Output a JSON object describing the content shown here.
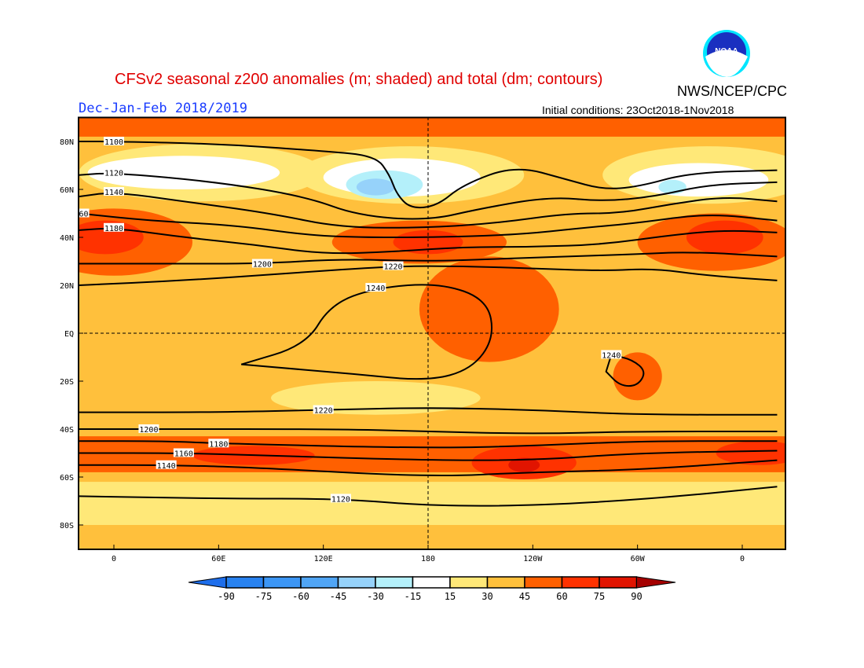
{
  "header": {
    "title": "CFSv2 seasonal z200 anomalies (m; shaded) and total (dm; contours)",
    "organization": "NWS/NCEP/CPC",
    "logo_text": "NOAA",
    "season": "Dec-Jan-Feb 2018/2019",
    "initial_conditions": "Initial conditions: 23Oct2018-1Nov2018"
  },
  "chart_data": {
    "type": "contour-map",
    "title": "CFSv2 seasonal z200 anomalies (m; shaded) and total (dm; contours)",
    "lon_range": [
      -20,
      380
    ],
    "lat_range": [
      -90,
      90
    ],
    "x_ticks": [
      {
        "lon": 0,
        "label": "0"
      },
      {
        "lon": 60,
        "label": "60E"
      },
      {
        "lon": 120,
        "label": "120E"
      },
      {
        "lon": 180,
        "label": "180"
      },
      {
        "lon": 240,
        "label": "120W"
      },
      {
        "lon": 300,
        "label": "60W"
      },
      {
        "lon": 360,
        "label": "0"
      }
    ],
    "y_ticks": [
      {
        "lat": 80,
        "label": "80N"
      },
      {
        "lat": 60,
        "label": "60N"
      },
      {
        "lat": 40,
        "label": "40N"
      },
      {
        "lat": 20,
        "label": "20N"
      },
      {
        "lat": 0,
        "label": "EQ"
      },
      {
        "lat": -20,
        "label": "20S"
      },
      {
        "lat": -40,
        "label": "40S"
      },
      {
        "lat": -60,
        "label": "60S"
      },
      {
        "lat": -80,
        "label": "80S"
      }
    ],
    "colors": {
      "bg": "#ffc03c",
      "levels": [
        "#1e6eeb",
        "#2882f0",
        "#3c96f5",
        "#50a5f5",
        "#96d2fa",
        "#b4f0fa",
        "#ffffff",
        "#ffe878",
        "#ffc03c",
        "#ff6000",
        "#ff3200",
        "#e11400",
        "#a50000"
      ]
    },
    "colorbar_labels": [
      "-90",
      "-75",
      "-60",
      "-45",
      "-30",
      "-15",
      "15",
      "30",
      "45",
      "60",
      "75",
      "90"
    ],
    "anomaly_regions": [
      {
        "shape": "band",
        "lat": [
          -90,
          -78
        ],
        "level": 8
      },
      {
        "shape": "band",
        "lat": [
          -80,
          -62
        ],
        "level": 7
      },
      {
        "shape": "band",
        "lat": [
          82,
          90
        ],
        "level": 9
      },
      {
        "shape": "ellipse",
        "lon": 50,
        "lat": 67,
        "dlon": 70,
        "dlat": 12,
        "level": 7
      },
      {
        "shape": "ellipse",
        "lon": 170,
        "lat": 66,
        "dlon": 65,
        "dlat": 12,
        "level": 7
      },
      {
        "shape": "ellipse",
        "lon": 340,
        "lat": 66,
        "dlon": 60,
        "dlat": 12,
        "level": 7
      },
      {
        "shape": "ellipse",
        "lon": 40,
        "lat": 67,
        "dlon": 55,
        "dlat": 7,
        "level": 6
      },
      {
        "shape": "ellipse",
        "lon": 165,
        "lat": 65,
        "dlon": 45,
        "dlat": 8,
        "level": 6
      },
      {
        "shape": "ellipse",
        "lon": 335,
        "lat": 64,
        "dlon": 40,
        "dlat": 7,
        "level": 6
      },
      {
        "shape": "ellipse",
        "lon": 155,
        "lat": 62,
        "dlon": 22,
        "dlat": 6,
        "level": 5
      },
      {
        "shape": "ellipse",
        "lon": 150,
        "lat": 61,
        "dlon": 11,
        "dlat": 3.5,
        "level": 4
      },
      {
        "shape": "ellipse",
        "lon": 320,
        "lat": 61,
        "dlon": 8,
        "dlat": 3,
        "level": 5
      },
      {
        "shape": "ellipse",
        "lon": 0,
        "lat": 38,
        "dlon": 45,
        "dlat": 14,
        "level": 9
      },
      {
        "shape": "ellipse",
        "lon": -5,
        "lat": 40,
        "dlon": 22,
        "dlat": 7,
        "level": 10
      },
      {
        "shape": "ellipse",
        "lon": 175,
        "lat": 38,
        "dlon": 50,
        "dlat": 9,
        "level": 9
      },
      {
        "shape": "ellipse",
        "lon": 180,
        "lat": 38,
        "dlon": 20,
        "dlat": 5,
        "level": 10
      },
      {
        "shape": "ellipse",
        "lon": 345,
        "lat": 38,
        "dlon": 45,
        "dlat": 12,
        "level": 9
      },
      {
        "shape": "ellipse",
        "lon": 350,
        "lat": 40,
        "dlon": 22,
        "dlat": 7,
        "level": 10
      },
      {
        "shape": "ellipse",
        "lon": 215,
        "lat": 10,
        "dlon": 40,
        "dlat": 22,
        "level": 9
      },
      {
        "shape": "ellipse",
        "lon": 300,
        "lat": -18,
        "dlon": 14,
        "dlat": 10,
        "level": 9
      },
      {
        "shape": "ellipse",
        "lon": 150,
        "lat": -27,
        "dlon": 60,
        "dlat": 7,
        "level": 7
      },
      {
        "shape": "band",
        "lat": [
          -58,
          -43
        ],
        "level": 9
      },
      {
        "shape": "ellipse",
        "lon": 80,
        "lat": -51,
        "dlon": 35,
        "dlat": 4,
        "level": 10
      },
      {
        "shape": "ellipse",
        "lon": 235,
        "lat": -54,
        "dlon": 30,
        "dlat": 7,
        "level": 10
      },
      {
        "shape": "ellipse",
        "lon": 235,
        "lat": -55,
        "dlon": 9,
        "dlat": 3,
        "level": 11
      },
      {
        "shape": "ellipse",
        "lon": 370,
        "lat": -50,
        "dlon": 25,
        "dlat": 5,
        "level": 10
      }
    ],
    "contours": [
      {
        "value": "1100",
        "label_index": 1,
        "points": [
          [
            -20,
            80
          ],
          [
            0,
            80
          ],
          [
            60,
            79
          ],
          [
            120,
            76
          ],
          [
            150,
            74
          ],
          [
            158,
            66
          ],
          [
            162,
            58
          ],
          [
            170,
            52
          ],
          [
            185,
            53
          ],
          [
            200,
            62
          ],
          [
            230,
            70
          ],
          [
            260,
            64
          ],
          [
            280,
            60
          ],
          [
            300,
            61
          ],
          [
            330,
            67
          ],
          [
            380,
            68
          ]
        ]
      },
      {
        "value": "1120",
        "label_index": 1,
        "points": [
          [
            -20,
            66
          ],
          [
            0,
            67
          ],
          [
            60,
            63
          ],
          [
            110,
            57
          ],
          [
            140,
            49
          ],
          [
            180,
            47
          ],
          [
            210,
            52
          ],
          [
            250,
            57
          ],
          [
            280,
            55
          ],
          [
            310,
            57
          ],
          [
            340,
            62
          ],
          [
            380,
            63
          ]
        ]
      },
      {
        "value": "1140",
        "label_index": 1,
        "points": [
          [
            -20,
            57
          ],
          [
            0,
            59
          ],
          [
            40,
            55
          ],
          [
            90,
            50
          ],
          [
            130,
            44
          ],
          [
            180,
            44
          ],
          [
            220,
            46
          ],
          [
            260,
            50
          ],
          [
            290,
            50
          ],
          [
            320,
            54
          ],
          [
            350,
            57
          ],
          [
            380,
            55
          ]
        ]
      },
      {
        "value": "1160",
        "label_index": 0,
        "points": [
          [
            -20,
            50
          ],
          [
            20,
            47
          ],
          [
            70,
            45
          ],
          [
            110,
            41
          ],
          [
            140,
            40
          ],
          [
            180,
            40
          ],
          [
            230,
            41
          ],
          [
            270,
            44
          ],
          [
            300,
            46
          ],
          [
            340,
            50
          ],
          [
            380,
            47
          ]
        ]
      },
      {
        "value": "1180",
        "label_index": 1,
        "points": [
          [
            -20,
            43
          ],
          [
            0,
            44
          ],
          [
            40,
            40
          ],
          [
            80,
            37
          ],
          [
            120,
            33
          ],
          [
            160,
            34
          ],
          [
            200,
            36
          ],
          [
            240,
            36
          ],
          [
            280,
            37
          ],
          [
            320,
            41
          ],
          [
            350,
            43
          ],
          [
            380,
            42
          ]
        ]
      },
      {
        "value": "1200",
        "label_index": 2,
        "points": [
          [
            -20,
            29
          ],
          [
            30,
            29
          ],
          [
            85,
            29
          ],
          [
            130,
            31
          ],
          [
            180,
            30
          ],
          [
            220,
            31
          ],
          [
            260,
            32
          ],
          [
            300,
            33
          ],
          [
            330,
            34
          ],
          [
            380,
            32
          ]
        ]
      },
      {
        "value": "1220",
        "label_index": 3,
        "points": [
          [
            -20,
            20
          ],
          [
            40,
            22
          ],
          [
            100,
            25
          ],
          [
            160,
            28
          ],
          [
            200,
            28
          ],
          [
            240,
            27
          ],
          [
            280,
            26
          ],
          [
            310,
            27
          ],
          [
            340,
            24
          ],
          [
            380,
            22
          ]
        ]
      },
      {
        "value": "1240",
        "label_index": 3,
        "closed": true,
        "points": [
          [
            73,
            -13
          ],
          [
            110,
            -5
          ],
          [
            124,
            12
          ],
          [
            150,
            19
          ],
          [
            187,
            21
          ],
          [
            214,
            14
          ],
          [
            218,
            -2
          ],
          [
            205,
            -15
          ],
          [
            180,
            -20
          ],
          [
            137,
            -17
          ]
        ]
      },
      {
        "value": "1240",
        "label_index": 0,
        "closed": true,
        "points": [
          [
            285,
            -9
          ],
          [
            297,
            -11
          ],
          [
            305,
            -16
          ],
          [
            300,
            -22
          ],
          [
            290,
            -22
          ],
          [
            282,
            -16
          ]
        ]
      },
      {
        "value": "1220",
        "label_index": 2,
        "points": [
          [
            -20,
            -33
          ],
          [
            60,
            -33
          ],
          [
            120,
            -32
          ],
          [
            180,
            -31
          ],
          [
            240,
            -32
          ],
          [
            300,
            -34
          ],
          [
            380,
            -34
          ]
        ]
      },
      {
        "value": "1200",
        "label_index": 1,
        "points": [
          [
            -20,
            -40
          ],
          [
            20,
            -40
          ],
          [
            130,
            -40
          ],
          [
            180,
            -41
          ],
          [
            240,
            -42
          ],
          [
            300,
            -41
          ],
          [
            380,
            -41
          ]
        ]
      },
      {
        "value": "1180",
        "label_index": 2,
        "points": [
          [
            -20,
            -45
          ],
          [
            30,
            -45
          ],
          [
            60,
            -46
          ],
          [
            180,
            -48
          ],
          [
            240,
            -47
          ],
          [
            300,
            -45
          ],
          [
            380,
            -45
          ]
        ]
      },
      {
        "value": "1160",
        "label_index": 1,
        "points": [
          [
            -20,
            -50
          ],
          [
            40,
            -50
          ],
          [
            85,
            -51
          ],
          [
            180,
            -53
          ],
          [
            240,
            -53
          ],
          [
            300,
            -50
          ],
          [
            380,
            -49
          ]
        ]
      },
      {
        "value": "1140",
        "label_index": 1,
        "points": [
          [
            -20,
            -55
          ],
          [
            30,
            -55
          ],
          [
            80,
            -56
          ],
          [
            180,
            -60
          ],
          [
            240,
            -58
          ],
          [
            300,
            -57
          ],
          [
            380,
            -53
          ]
        ]
      },
      {
        "value": "1120",
        "label_index": 2,
        "points": [
          [
            -20,
            -68
          ],
          [
            60,
            -69
          ],
          [
            130,
            -69
          ],
          [
            180,
            -72
          ],
          [
            240,
            -72
          ],
          [
            310,
            -69
          ],
          [
            380,
            -64
          ]
        ]
      }
    ]
  }
}
